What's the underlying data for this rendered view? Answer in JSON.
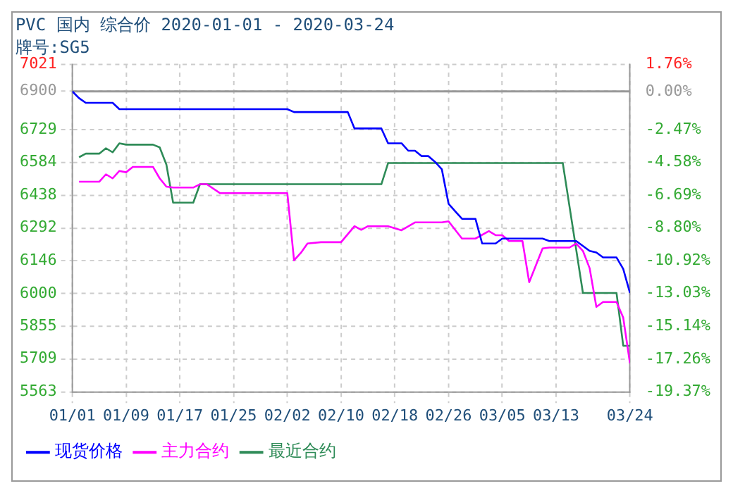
{
  "chart_data": {
    "type": "line",
    "title": "PVC 国内 综合价 2020-01-01 - 2020-03-24",
    "subtitle": "牌号:SG5",
    "xlim": [
      "2020-01-01",
      "2020-03-24"
    ],
    "xticks": [
      {
        "value": "2020-01-01",
        "label": "01/01"
      },
      {
        "value": "2020-01-09",
        "label": "01/09"
      },
      {
        "value": "2020-01-17",
        "label": "01/17"
      },
      {
        "value": "2020-01-25",
        "label": "01/25"
      },
      {
        "value": "2020-02-02",
        "label": "02/02"
      },
      {
        "value": "2020-02-10",
        "label": "02/10"
      },
      {
        "value": "2020-02-18",
        "label": "02/18"
      },
      {
        "value": "2020-02-26",
        "label": "02/26"
      },
      {
        "value": "2020-03-05",
        "label": "03/05"
      },
      {
        "value": "2020-03-13",
        "label": "03/13"
      },
      {
        "value": "2020-03-24",
        "label": "03/24"
      }
    ],
    "ylim": [
      5563,
      7021
    ],
    "yticks": [
      5563,
      5709,
      5855,
      6000,
      6146,
      6292,
      6438,
      6584,
      6729,
      6900,
      7021
    ],
    "y2lim": [
      -19.37,
      1.76
    ],
    "y2ticks": [
      {
        "value": -19.37,
        "label": "-19.37%"
      },
      {
        "value": -17.26,
        "label": "-17.26%"
      },
      {
        "value": -15.14,
        "label": "-15.14%"
      },
      {
        "value": -13.03,
        "label": "-13.03%"
      },
      {
        "value": -10.92,
        "label": "-10.92%"
      },
      {
        "value": -8.8,
        "label": "-8.80%"
      },
      {
        "value": -6.69,
        "label": "-6.69%"
      },
      {
        "value": -4.58,
        "label": "-4.58%"
      },
      {
        "value": -2.47,
        "label": "-2.47%"
      },
      {
        "value": 0,
        "label": "0.00%"
      },
      {
        "value": 1.76,
        "label": "1.76%"
      }
    ],
    "ref_lines": [
      {
        "axis": "y",
        "value": 6900,
        "color": "#999999"
      }
    ],
    "grid": true,
    "line_style": "solid",
    "marker": "none",
    "legend": "bottom",
    "series": [
      {
        "name": "现货价格",
        "color": "#0000ff",
        "x": [
          "2020-01-01",
          "2020-01-02",
          "2020-01-03",
          "2020-01-07",
          "2020-01-08",
          "2020-02-02",
          "2020-02-03",
          "2020-02-11",
          "2020-02-12",
          "2020-02-16",
          "2020-02-17",
          "2020-02-19",
          "2020-02-20",
          "2020-02-21",
          "2020-02-22",
          "2020-02-23",
          "2020-02-24",
          "2020-02-25",
          "2020-02-26",
          "2020-02-27",
          "2020-02-28",
          "2020-03-01",
          "2020-03-02",
          "2020-03-04",
          "2020-03-05",
          "2020-03-11",
          "2020-03-12",
          "2020-03-16",
          "2020-03-17",
          "2020-03-18",
          "2020-03-19",
          "2020-03-20",
          "2020-03-22",
          "2020-03-23",
          "2020-03-24"
        ],
        "values": [
          6900,
          6870,
          6849,
          6849,
          6821,
          6821,
          6808,
          6808,
          6735,
          6735,
          6669,
          6669,
          6636,
          6636,
          6612,
          6612,
          6586,
          6553,
          6400,
          6366,
          6333,
          6333,
          6223,
          6223,
          6245,
          6245,
          6234,
          6234,
          6212,
          6190,
          6183,
          6161,
          6161,
          6110,
          6003
        ]
      },
      {
        "name": "主力合约",
        "color": "#ff00ff",
        "x": [
          "2020-01-02",
          "2020-01-05",
          "2020-01-06",
          "2020-01-07",
          "2020-01-08",
          "2020-01-09",
          "2020-01-10",
          "2020-01-13",
          "2020-01-14",
          "2020-01-15",
          "2020-01-16",
          "2020-01-19",
          "2020-01-20",
          "2020-01-21",
          "2020-01-23",
          "2020-02-02",
          "2020-02-03",
          "2020-02-04",
          "2020-02-05",
          "2020-02-07",
          "2020-02-10",
          "2020-02-12",
          "2020-02-13",
          "2020-02-14",
          "2020-02-17",
          "2020-02-19",
          "2020-02-21",
          "2020-02-25",
          "2020-02-26",
          "2020-02-28",
          "2020-03-01",
          "2020-03-03",
          "2020-03-04",
          "2020-03-05",
          "2020-03-06",
          "2020-03-08",
          "2020-03-09",
          "2020-03-11",
          "2020-03-12",
          "2020-03-15",
          "2020-03-16",
          "2020-03-17",
          "2020-03-18",
          "2020-03-19",
          "2020-03-20",
          "2020-03-22",
          "2020-03-23",
          "2020-03-24"
        ],
        "values": [
          6498,
          6498,
          6531,
          6513,
          6546,
          6540,
          6564,
          6564,
          6513,
          6476,
          6472,
          6472,
          6487,
          6487,
          6447,
          6447,
          6148,
          6181,
          6223,
          6229,
          6229,
          6300,
          6284,
          6300,
          6300,
          6282,
          6317,
          6317,
          6322,
          6245,
          6245,
          6278,
          6260,
          6260,
          6234,
          6234,
          6051,
          6201,
          6205,
          6205,
          6223,
          6190,
          6113,
          5941,
          5963,
          5963,
          5893,
          5690
        ]
      },
      {
        "name": "最近合约",
        "color": "#2e8b57",
        "x": [
          "2020-01-02",
          "2020-01-03",
          "2020-01-05",
          "2020-01-06",
          "2020-01-07",
          "2020-01-08",
          "2020-01-09",
          "2020-01-13",
          "2020-01-14",
          "2020-01-15",
          "2020-01-16",
          "2020-01-19",
          "2020-01-20",
          "2020-02-16",
          "2020-02-17",
          "2020-03-14",
          "2020-03-17",
          "2020-03-22",
          "2020-03-23",
          "2020-03-24"
        ],
        "values": [
          6607,
          6623,
          6623,
          6647,
          6629,
          6669,
          6663,
          6663,
          6651,
          6574,
          6405,
          6405,
          6487,
          6487,
          6581,
          6581,
          6003,
          6003,
          5768,
          5768
        ]
      }
    ]
  }
}
